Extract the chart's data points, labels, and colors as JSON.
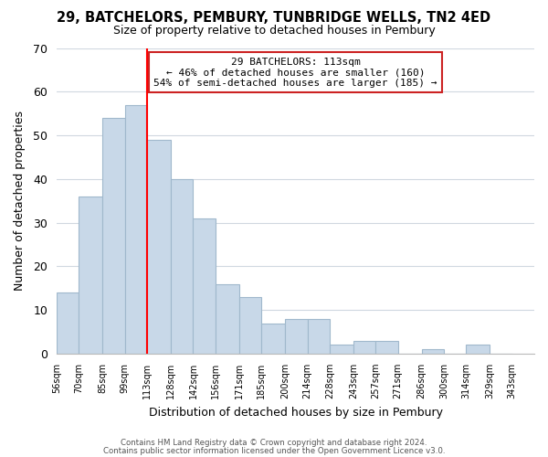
{
  "title": "29, BATCHELORS, PEMBURY, TUNBRIDGE WELLS, TN2 4ED",
  "subtitle": "Size of property relative to detached houses in Pembury",
  "xlabel": "Distribution of detached houses by size in Pembury",
  "ylabel": "Number of detached properties",
  "bar_left_edges": [
    56,
    70,
    85,
    99,
    113,
    128,
    142,
    156,
    171,
    185,
    200,
    214,
    228,
    243,
    257,
    271,
    286,
    300,
    314,
    329
  ],
  "bar_heights": [
    14,
    36,
    54,
    57,
    49,
    40,
    31,
    16,
    13,
    7,
    8,
    8,
    2,
    3,
    3,
    0,
    1,
    0,
    2,
    0
  ],
  "bar_widths": [
    14,
    15,
    14,
    14,
    15,
    14,
    14,
    15,
    14,
    15,
    14,
    14,
    15,
    14,
    14,
    15,
    14,
    14,
    15,
    14
  ],
  "xtick_labels": [
    "56sqm",
    "70sqm",
    "85sqm",
    "99sqm",
    "113sqm",
    "128sqm",
    "142sqm",
    "156sqm",
    "171sqm",
    "185sqm",
    "200sqm",
    "214sqm",
    "228sqm",
    "243sqm",
    "257sqm",
    "271sqm",
    "286sqm",
    "300sqm",
    "314sqm",
    "329sqm",
    "343sqm"
  ],
  "xtick_positions": [
    56,
    70,
    85,
    99,
    113,
    128,
    142,
    156,
    171,
    185,
    200,
    214,
    228,
    243,
    257,
    271,
    286,
    300,
    314,
    329,
    343
  ],
  "ylim": [
    0,
    70
  ],
  "yticks": [
    0,
    10,
    20,
    30,
    40,
    50,
    60,
    70
  ],
  "bar_color": "#c8d8e8",
  "bar_edge_color": "#a0b8cc",
  "red_line_x": 113,
  "annotation_line1": "29 BATCHELORS: 113sqm",
  "annotation_line2": "← 46% of detached houses are smaller (160)",
  "annotation_line3": "54% of semi-detached houses are larger (185) →",
  "footer_line1": "Contains HM Land Registry data © Crown copyright and database right 2024.",
  "footer_line2": "Contains public sector information licensed under the Open Government Licence v3.0.",
  "grid_color": "#d0d8e0",
  "background_color": "#ffffff",
  "xlim_left": 56,
  "xlim_right": 357
}
